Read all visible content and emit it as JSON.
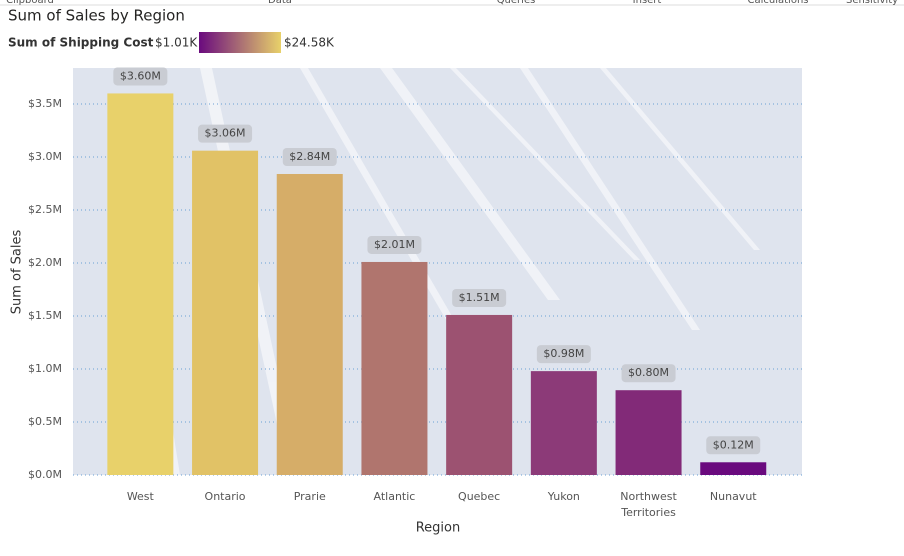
{
  "ribbon": [
    "Clipboard",
    "Data",
    "Queries",
    "Insert",
    "Calculations",
    "Sensitivity"
  ],
  "chart_data": {
    "type": "bar",
    "title": "Sum of Sales by Region",
    "legend": {
      "title": "Sum of Shipping Cost",
      "min_label": "$1.01K",
      "max_label": "$24.58K",
      "low_color": "#6a0a7e",
      "high_color": "#e8d16a"
    },
    "x_label": "Region",
    "y_label": "Sum of Sales",
    "categories": [
      "West",
      "Ontario",
      "Prarie",
      "Atlantic",
      "Quebec",
      "Yukon",
      "Northwest Territories",
      "Nunavut"
    ],
    "values": [
      3.6,
      3.06,
      2.84,
      2.01,
      1.51,
      0.98,
      0.8,
      0.12
    ],
    "value_labels": [
      "$3.60M",
      "$3.06M",
      "$2.84M",
      "$2.01M",
      "$1.51M",
      "$0.98M",
      "$0.80M",
      "$0.12M"
    ],
    "colors": [
      "#e8d16a",
      "#e1c266",
      "#d6ad68",
      "#b0756e",
      "#9c5271",
      "#8c3a78",
      "#822a78",
      "#6a0a7e"
    ],
    "ylim": [
      0,
      3.84
    ],
    "yticks": [
      {
        "value": 0,
        "label": "$0.0M"
      },
      {
        "value": 0.5,
        "label": "$0.5M"
      },
      {
        "value": 1,
        "label": "$1.0M"
      },
      {
        "value": 1.5,
        "label": "$1.5M"
      },
      {
        "value": 2,
        "label": "$2.0M"
      },
      {
        "value": 2.5,
        "label": "$2.5M"
      },
      {
        "value": 3,
        "label": "$3.0M"
      },
      {
        "value": 3.5,
        "label": "$3.5M"
      }
    ],
    "grid": true
  }
}
